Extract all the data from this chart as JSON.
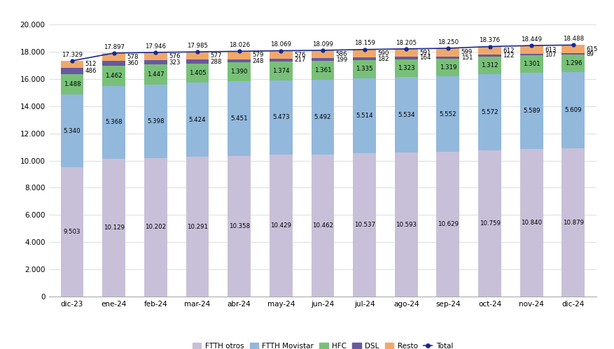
{
  "months": [
    "dic-23",
    "ene-24",
    "feb-24",
    "mar-24",
    "abr-24",
    "may-24",
    "jun-24",
    "jul-24",
    "ago-24",
    "sep-24",
    "oct-24",
    "nov-24",
    "dic-24"
  ],
  "ftth_otros": [
    9503,
    10129,
    10202,
    10291,
    10358,
    10429,
    10462,
    10537,
    10593,
    10629,
    10759,
    10840,
    10879
  ],
  "ftth_movistar": [
    5340,
    5368,
    5398,
    5424,
    5451,
    5473,
    5492,
    5514,
    5534,
    5552,
    5572,
    5589,
    5609
  ],
  "hfc": [
    1488,
    1462,
    1447,
    1405,
    1390,
    1374,
    1361,
    1335,
    1323,
    1319,
    1312,
    1301,
    1296
  ],
  "dsl": [
    486,
    360,
    323,
    288,
    248,
    217,
    199,
    182,
    164,
    151,
    122,
    107,
    89
  ],
  "resto": [
    512,
    578,
    576,
    577,
    579,
    576,
    586,
    590,
    591,
    599,
    612,
    613,
    615
  ],
  "total": [
    17329,
    17897,
    17946,
    17985,
    18026,
    18069,
    18099,
    18159,
    18205,
    18250,
    18376,
    18449,
    18488
  ],
  "colors": {
    "ftth_otros": "#c8c0d8",
    "ftth_movistar": "#92b8dc",
    "hfc": "#78c078",
    "dsl": "#6858a0",
    "resto": "#f0a86a",
    "total_line": "#1a2890"
  },
  "ylim": [
    0,
    20000
  ],
  "yticks": [
    0,
    2000,
    4000,
    6000,
    8000,
    10000,
    12000,
    14000,
    16000,
    18000,
    20000
  ],
  "ytick_labels": [
    "0",
    "2.000",
    "4.000",
    "6.000",
    "8.000",
    "10.000",
    "12.000",
    "14.000",
    "16.000",
    "18.000",
    "20.000"
  ],
  "legend_labels": [
    "FTTH otros",
    "FTTH Movistar",
    "HFC",
    "DSL",
    "Resto",
    "Total"
  ],
  "bar_width": 0.55
}
